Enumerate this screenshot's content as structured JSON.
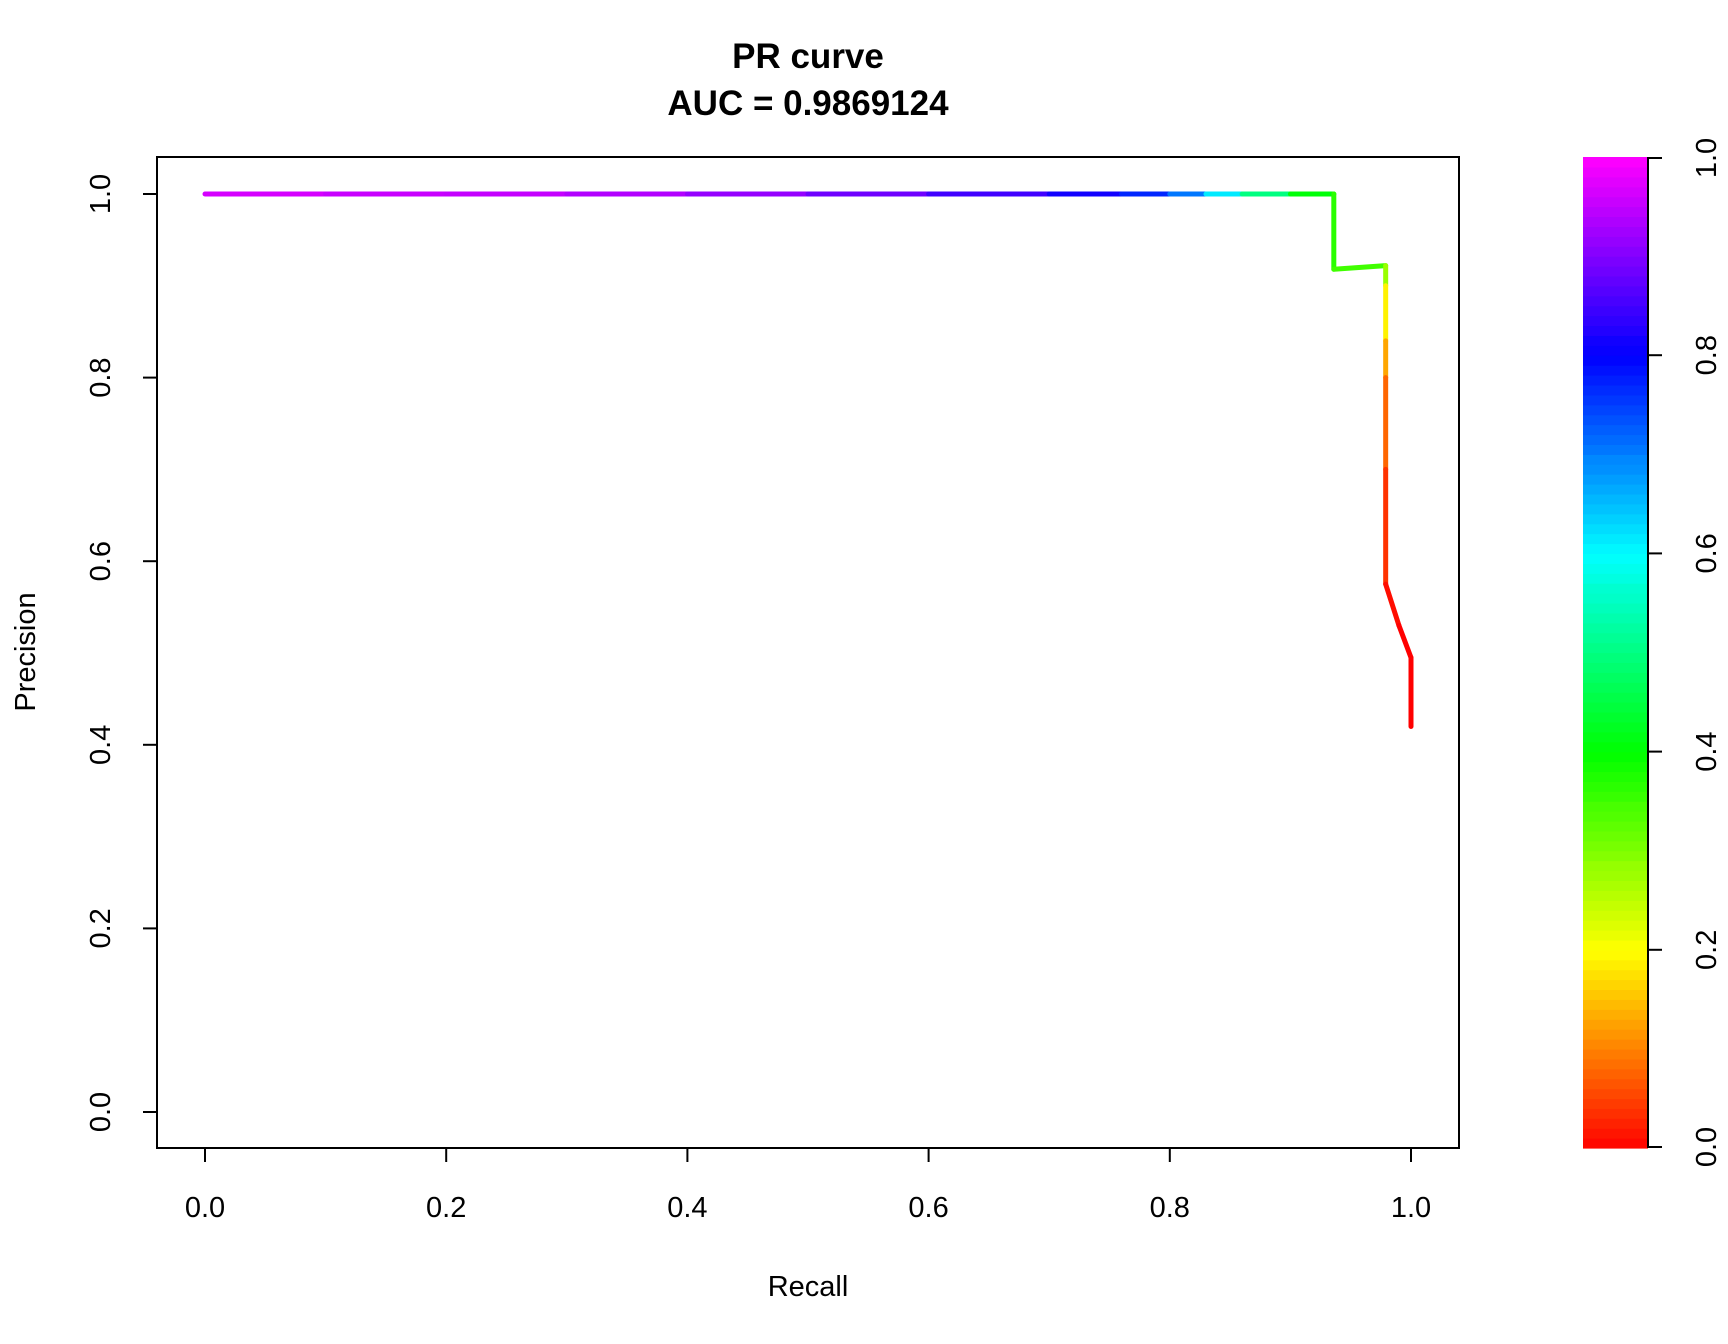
{
  "chart_data": {
    "type": "line",
    "title": "PR curve",
    "subtitle": "AUC = 0.9869124",
    "xlabel": "Recall",
    "ylabel": "Precision",
    "xlim": [
      0,
      1
    ],
    "ylim": [
      0,
      1
    ],
    "x_ticks": [
      "0.0",
      "0.2",
      "0.4",
      "0.6",
      "0.8",
      "1.0"
    ],
    "y_ticks": [
      "0.0",
      "0.2",
      "0.4",
      "0.6",
      "0.8",
      "1.0"
    ],
    "grid": false,
    "legend": "none",
    "series": [
      {
        "points": [
          {
            "x": 0.0,
            "y": 1.0,
            "c": 0.97
          },
          {
            "x": 0.1,
            "y": 1.0,
            "c": 0.96
          },
          {
            "x": 0.2,
            "y": 1.0,
            "c": 0.955
          },
          {
            "x": 0.3,
            "y": 1.0,
            "c": 0.95
          },
          {
            "x": 0.4,
            "y": 1.0,
            "c": 0.93
          },
          {
            "x": 0.5,
            "y": 1.0,
            "c": 0.9
          },
          {
            "x": 0.6,
            "y": 1.0,
            "c": 0.87
          },
          {
            "x": 0.7,
            "y": 1.0,
            "c": 0.83
          },
          {
            "x": 0.76,
            "y": 1.0,
            "c": 0.8
          },
          {
            "x": 0.8,
            "y": 1.0,
            "c": 0.74
          },
          {
            "x": 0.83,
            "y": 1.0,
            "c": 0.67
          },
          {
            "x": 0.86,
            "y": 1.0,
            "c": 0.56
          },
          {
            "x": 0.9,
            "y": 1.0,
            "c": 0.44
          },
          {
            "x": 0.936,
            "y": 1.0,
            "c": 0.37
          },
          {
            "x": 0.936,
            "y": 0.918,
            "c": 0.36
          },
          {
            "x": 0.979,
            "y": 0.922,
            "c": 0.34
          },
          {
            "x": 0.979,
            "y": 0.9,
            "c": 0.22
          },
          {
            "x": 0.979,
            "y": 0.84,
            "c": 0.16
          },
          {
            "x": 0.979,
            "y": 0.8,
            "c": 0.1
          },
          {
            "x": 0.979,
            "y": 0.7,
            "c": 0.06
          },
          {
            "x": 0.979,
            "y": 0.575,
            "c": 0.02
          },
          {
            "x": 0.99,
            "y": 0.53,
            "c": 0.0
          },
          {
            "x": 1.0,
            "y": 0.495,
            "c": 0.0
          },
          {
            "x": 1.0,
            "y": 0.42,
            "c": 0.0
          }
        ]
      }
    ],
    "colorbar": {
      "range": [
        0,
        1
      ],
      "ticks": [
        "0.0",
        "0.2",
        "0.4",
        "0.6",
        "0.8",
        "1.0"
      ],
      "palette": "rainbow (red → yellow → green → cyan → blue → magenta)"
    }
  }
}
